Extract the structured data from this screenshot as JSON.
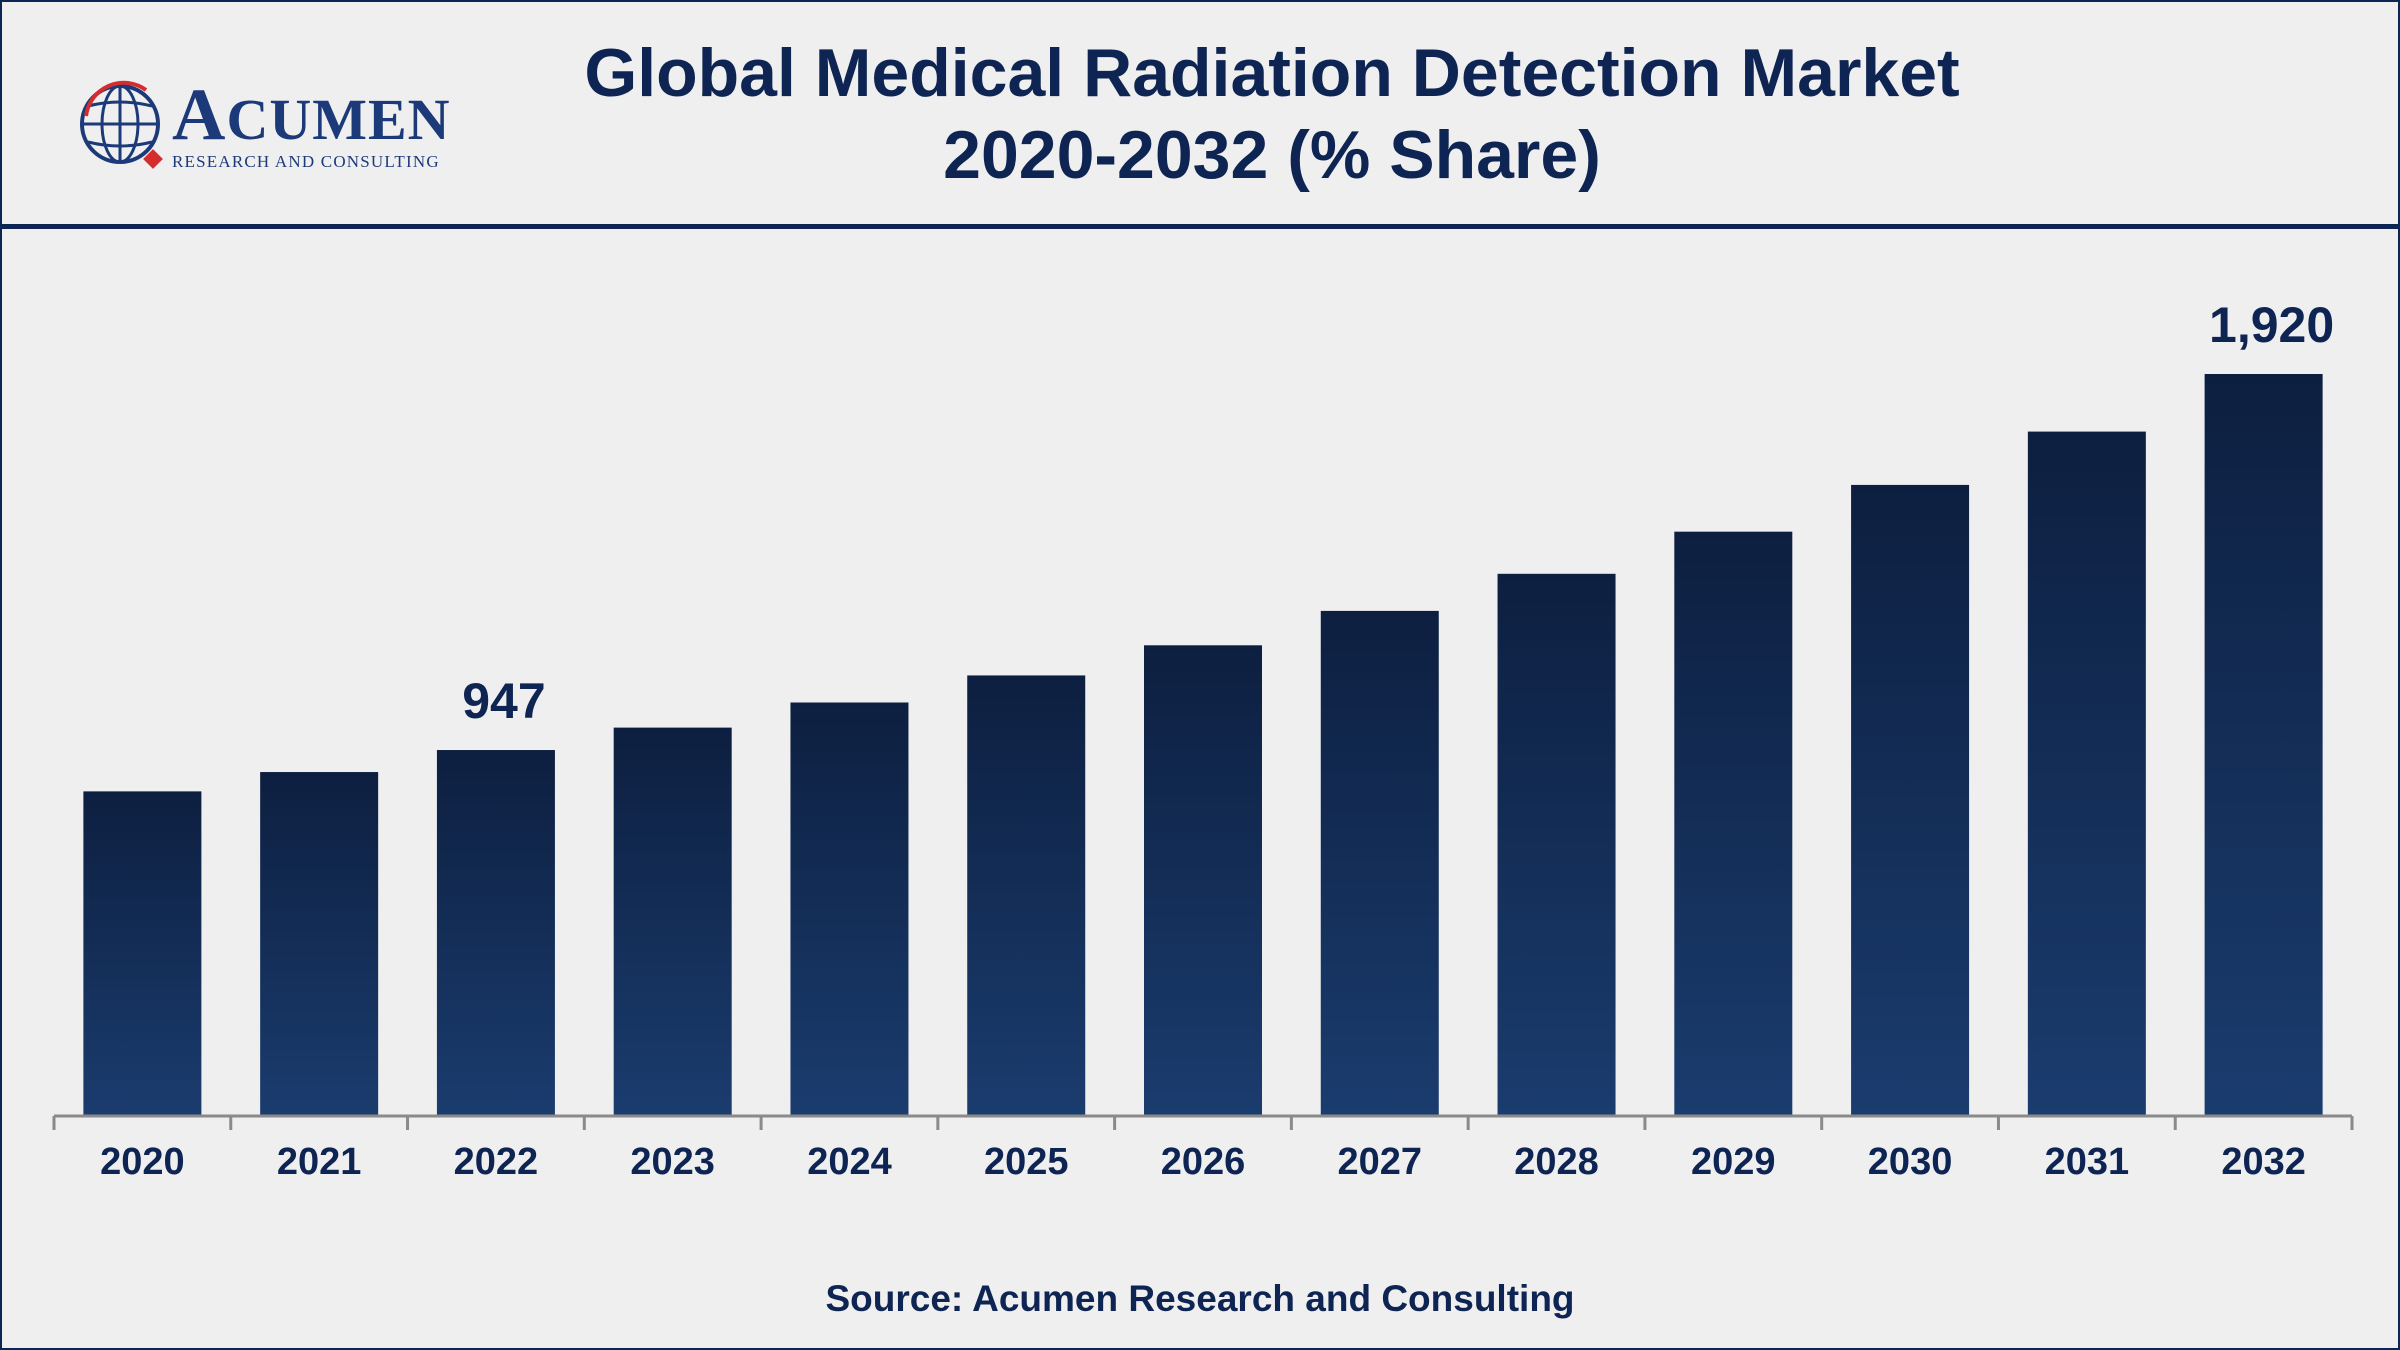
{
  "header": {
    "title_line1": "Global Medical Radiation Detection Market",
    "title_line2": "2020-2032 (% Share)",
    "logo": {
      "name": "ACUMEN",
      "tagline": "RESEARCH AND CONSULTING",
      "icon": "globe-icon"
    }
  },
  "colors": {
    "navy": "#0e2452",
    "bar_top": "#0d1f40",
    "bar_bottom": "#1a3c6e",
    "axis": "#8a8a8a",
    "logo_red": "#d42d2d"
  },
  "chart_data": {
    "type": "bar",
    "categories": [
      "2020",
      "2021",
      "2022",
      "2023",
      "2024",
      "2025",
      "2026",
      "2027",
      "2028",
      "2029",
      "2030",
      "2031",
      "2032"
    ],
    "values": [
      840,
      890,
      947,
      1005,
      1070,
      1140,
      1218,
      1307,
      1403,
      1512,
      1633,
      1771,
      1920
    ],
    "data_labels": {
      "2022": "947",
      "2032": "1,920"
    },
    "ylim": [
      0,
      1920
    ],
    "grid": false,
    "legend": "none"
  },
  "source": "Source: Acumen Research and Consulting"
}
